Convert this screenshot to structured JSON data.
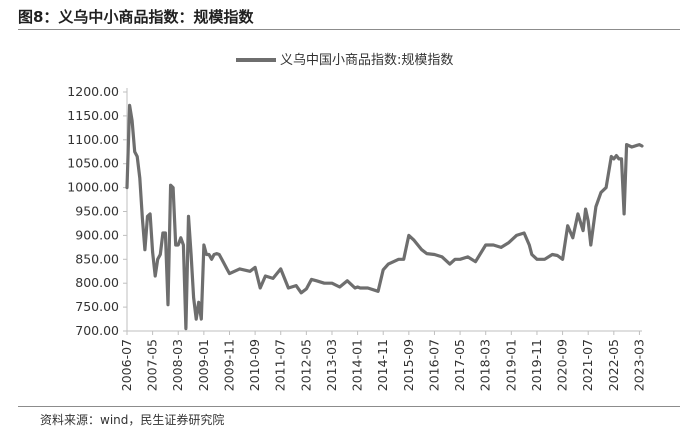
{
  "figure": {
    "title": "图8：义乌中小商品指数：规模指数",
    "source": "资料来源：wind，民生证券研究院"
  },
  "colors": {
    "series": "#6e6e6e",
    "axis": "#bfbfbf"
  },
  "chart_data": {
    "type": "line",
    "title": "",
    "xlabel": "",
    "ylabel": "",
    "ylim": [
      700,
      1200
    ],
    "grid": false,
    "legend_position": "top",
    "y_ticks": [
      "700.00",
      "750.00",
      "800.00",
      "850.00",
      "900.00",
      "950.00",
      "1000.00",
      "1050.00",
      "1100.00",
      "1150.00",
      "1200.00"
    ],
    "x_ticks": [
      "2006-07",
      "2007-05",
      "2008-03",
      "2009-01",
      "2009-11",
      "2010-09",
      "2011-07",
      "2012-05",
      "2013-03",
      "2014-01",
      "2014-11",
      "2015-09",
      "2016-07",
      "2017-05",
      "2018-03",
      "2019-01",
      "2019-11",
      "2020-09",
      "2021-07",
      "2022-05",
      "2023-03"
    ],
    "series": [
      {
        "name": "义乌中国小商品指数:规模指数",
        "x": [
          "2006-07",
          "2006-08",
          "2006-09",
          "2006-10",
          "2006-11",
          "2006-12",
          "2007-01",
          "2007-02",
          "2007-03",
          "2007-04",
          "2007-05",
          "2007-06",
          "2007-07",
          "2007-08",
          "2007-09",
          "2007-10",
          "2007-11",
          "2007-12",
          "2008-01",
          "2008-02",
          "2008-03",
          "2008-04",
          "2008-05",
          "2008-06",
          "2008-07",
          "2008-08",
          "2008-09",
          "2008-10",
          "2008-11",
          "2008-12",
          "2009-01",
          "2009-02",
          "2009-03",
          "2009-04",
          "2009-05",
          "2009-06",
          "2009-07",
          "2009-08",
          "2009-09",
          "2009-10",
          "2009-11",
          "2010-03",
          "2010-07",
          "2010-09",
          "2010-11",
          "2011-01",
          "2011-04",
          "2011-07",
          "2011-10",
          "2012-01",
          "2012-03",
          "2012-05",
          "2012-07",
          "2012-09",
          "2012-12",
          "2013-03",
          "2013-06",
          "2013-09",
          "2013-12",
          "2014-01",
          "2014-02",
          "2014-05",
          "2014-09",
          "2014-11",
          "2015-01",
          "2015-05",
          "2015-07",
          "2015-09",
          "2015-11",
          "2016-02",
          "2016-04",
          "2016-07",
          "2016-10",
          "2017-01",
          "2017-03",
          "2017-05",
          "2017-08",
          "2017-11",
          "2018-03",
          "2018-06",
          "2018-09",
          "2018-12",
          "2019-03",
          "2019-06",
          "2019-08",
          "2019-09",
          "2019-11",
          "2020-02",
          "2020-05",
          "2020-07",
          "2020-09",
          "2020-11",
          "2021-01",
          "2021-03",
          "2021-05",
          "2021-06",
          "2021-07",
          "2021-08",
          "2021-10",
          "2021-12",
          "2022-02",
          "2022-04",
          "2022-05",
          "2022-06",
          "2022-07",
          "2022-08",
          "2022-09",
          "2022-10",
          "2022-12",
          "2023-03",
          "2023-04"
        ],
        "values": [
          1000,
          1172,
          1140,
          1075,
          1065,
          1020,
          935,
          870,
          940,
          945,
          865,
          815,
          850,
          860,
          905,
          905,
          755,
          1005,
          1000,
          880,
          880,
          895,
          880,
          705,
          940,
          860,
          770,
          725,
          760,
          725,
          880,
          860,
          860,
          850,
          860,
          862,
          860,
          850,
          840,
          830,
          820,
          830,
          825,
          833,
          790,
          815,
          810,
          830,
          790,
          795,
          780,
          788,
          808,
          805,
          800,
          800,
          792,
          805,
          790,
          792,
          790,
          790,
          783,
          828,
          840,
          850,
          850,
          900,
          890,
          870,
          862,
          860,
          855,
          840,
          850,
          850,
          855,
          845,
          880,
          880,
          875,
          885,
          900,
          905,
          880,
          860,
          850,
          850,
          860,
          858,
          850,
          920,
          895,
          945,
          910,
          955,
          930,
          880,
          960,
          990,
          1000,
          1065,
          1060,
          1067,
          1060,
          1060,
          945,
          1090,
          1085,
          1090,
          1087
        ]
      }
    ]
  }
}
